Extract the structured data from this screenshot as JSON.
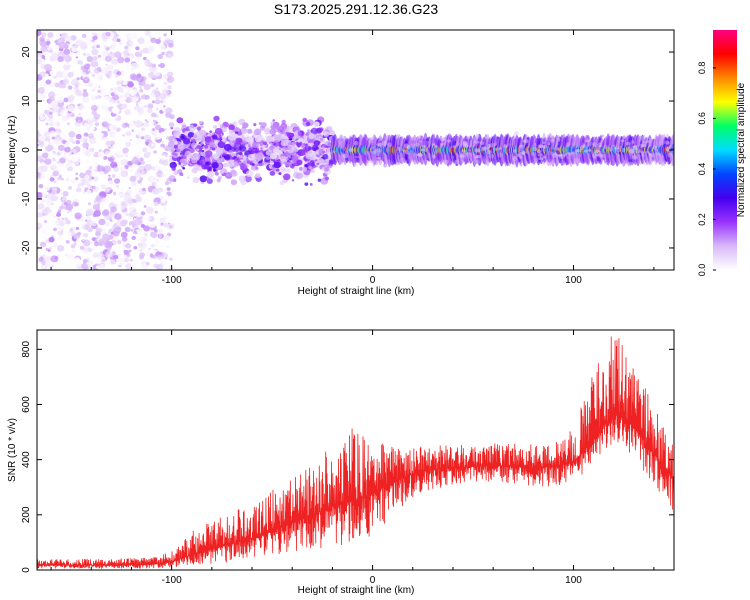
{
  "chart_data": [
    {
      "type": "heatmap",
      "title": "S173.2025.291.12.36.G23",
      "xlabel": "Height of straight line (km)",
      "ylabel": "Frequency (Hz)",
      "xlim": [
        -167,
        150
      ],
      "ylim": [
        -24.5,
        24.5
      ],
      "xticks": [
        -100,
        0,
        100
      ],
      "yticks": [
        -20,
        -10,
        0,
        10,
        20
      ],
      "colorbar": {
        "label": "Normalized spectral amplitude",
        "range": [
          0,
          0.95
        ],
        "ticks": [
          0.0,
          0.2,
          0.4,
          0.6,
          0.8
        ],
        "colormap": [
          "#ffffff",
          "#d8b8f8",
          "#9933ff",
          "#4400ee",
          "#0044ff",
          "#00ddff",
          "#00ff66",
          "#ffff00",
          "#ff8800",
          "#ff0000",
          "#ff0080"
        ]
      },
      "regions": [
        {
          "x": [
            -167,
            -100
          ],
          "description": "diffuse scatter",
          "amplitude": [
            0.0,
            0.15
          ],
          "freq_spread": 24
        },
        {
          "x": [
            -100,
            -20
          ],
          "description": "clustered noise",
          "amplitude": [
            0.05,
            0.3
          ],
          "freq_spread": 9
        },
        {
          "x": [
            -20,
            150
          ],
          "description": "narrow band",
          "amplitude": [
            0.3,
            0.9
          ],
          "center_freq": 0,
          "band_halfwidth": 1.5
        }
      ]
    },
    {
      "type": "line",
      "xlabel": "Height of straight line (km)",
      "ylabel": "SNR (10 * v/v)",
      "xlim": [
        -167,
        150
      ],
      "ylim": [
        0,
        870
      ],
      "xticks": [
        -100,
        0,
        100
      ],
      "yticks": [
        0,
        200,
        400,
        600,
        800
      ],
      "series": [
        {
          "name": "SNR",
          "color": "#ee2222",
          "x": [
            -167,
            -140,
            -110,
            -100,
            -90,
            -80,
            -70,
            -60,
            -50,
            -40,
            -30,
            -20,
            -10,
            0,
            10,
            20,
            30,
            40,
            50,
            60,
            70,
            80,
            90,
            100,
            110,
            115,
            120,
            125,
            130,
            140,
            150
          ],
          "baseline": [
            18,
            18,
            20,
            30,
            55,
            75,
            95,
            115,
            140,
            170,
            200,
            230,
            250,
            275,
            320,
            350,
            365,
            370,
            375,
            378,
            375,
            370,
            375,
            390,
            470,
            520,
            560,
            560,
            520,
            420,
            330
          ],
          "peak": [
            40,
            40,
            45,
            70,
            140,
            180,
            210,
            240,
            290,
            330,
            380,
            480,
            520,
            470,
            450,
            450,
            450,
            455,
            460,
            460,
            460,
            455,
            460,
            520,
            720,
            830,
            870,
            820,
            780,
            600,
            460
          ],
          "trough": [
            5,
            5,
            5,
            8,
            15,
            20,
            30,
            40,
            50,
            60,
            70,
            80,
            100,
            120,
            200,
            260,
            290,
            310,
            320,
            320,
            310,
            300,
            300,
            320,
            380,
            420,
            450,
            440,
            400,
            300,
            200
          ]
        }
      ]
    }
  ]
}
